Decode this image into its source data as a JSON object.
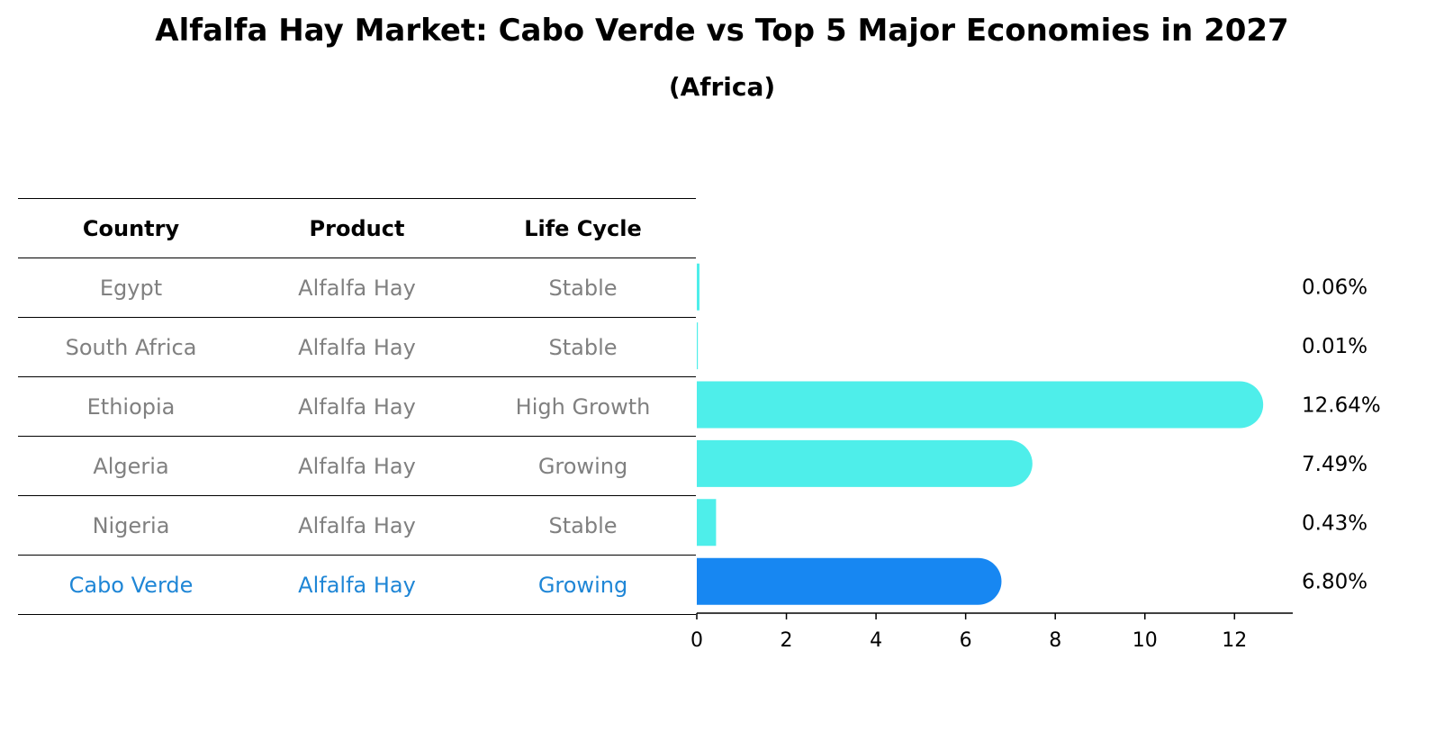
{
  "title": "Alfalfa Hay Market: Cabo Verde vs Top 5 Major Economies in 2027",
  "subtitle": "(Africa)",
  "table": {
    "headers": [
      "Country",
      "Product",
      "Life Cycle"
    ],
    "rows": [
      {
        "country": "Egypt",
        "product": "Alfalfa Hay",
        "life_cycle": "Stable"
      },
      {
        "country": "South Africa",
        "product": "Alfalfa Hay",
        "life_cycle": "Stable"
      },
      {
        "country": "Ethiopia",
        "product": "Alfalfa Hay",
        "life_cycle": "High Growth"
      },
      {
        "country": "Algeria",
        "product": "Alfalfa Hay",
        "life_cycle": "Growing"
      },
      {
        "country": "Nigeria",
        "product": "Alfalfa Hay",
        "life_cycle": "Stable"
      },
      {
        "country": "Cabo Verde",
        "product": "Alfalfa Hay",
        "life_cycle": "Growing"
      }
    ]
  },
  "chart_data": {
    "type": "bar",
    "orientation": "horizontal",
    "categories": [
      "Egypt",
      "South Africa",
      "Ethiopia",
      "Algeria",
      "Nigeria",
      "Cabo Verde"
    ],
    "values": [
      0.06,
      0.01,
      12.64,
      7.49,
      0.43,
      6.8
    ],
    "value_labels": [
      "0.06%",
      "0.01%",
      "12.64%",
      "7.49%",
      "0.43%",
      "6.80%"
    ],
    "xlim": [
      0,
      13.3
    ],
    "xticks": [
      0,
      2,
      4,
      6,
      8,
      10,
      12
    ],
    "colors": {
      "default": "#4eeeea",
      "highlight": "#1787f2"
    },
    "highlight": "Cabo Verde"
  }
}
